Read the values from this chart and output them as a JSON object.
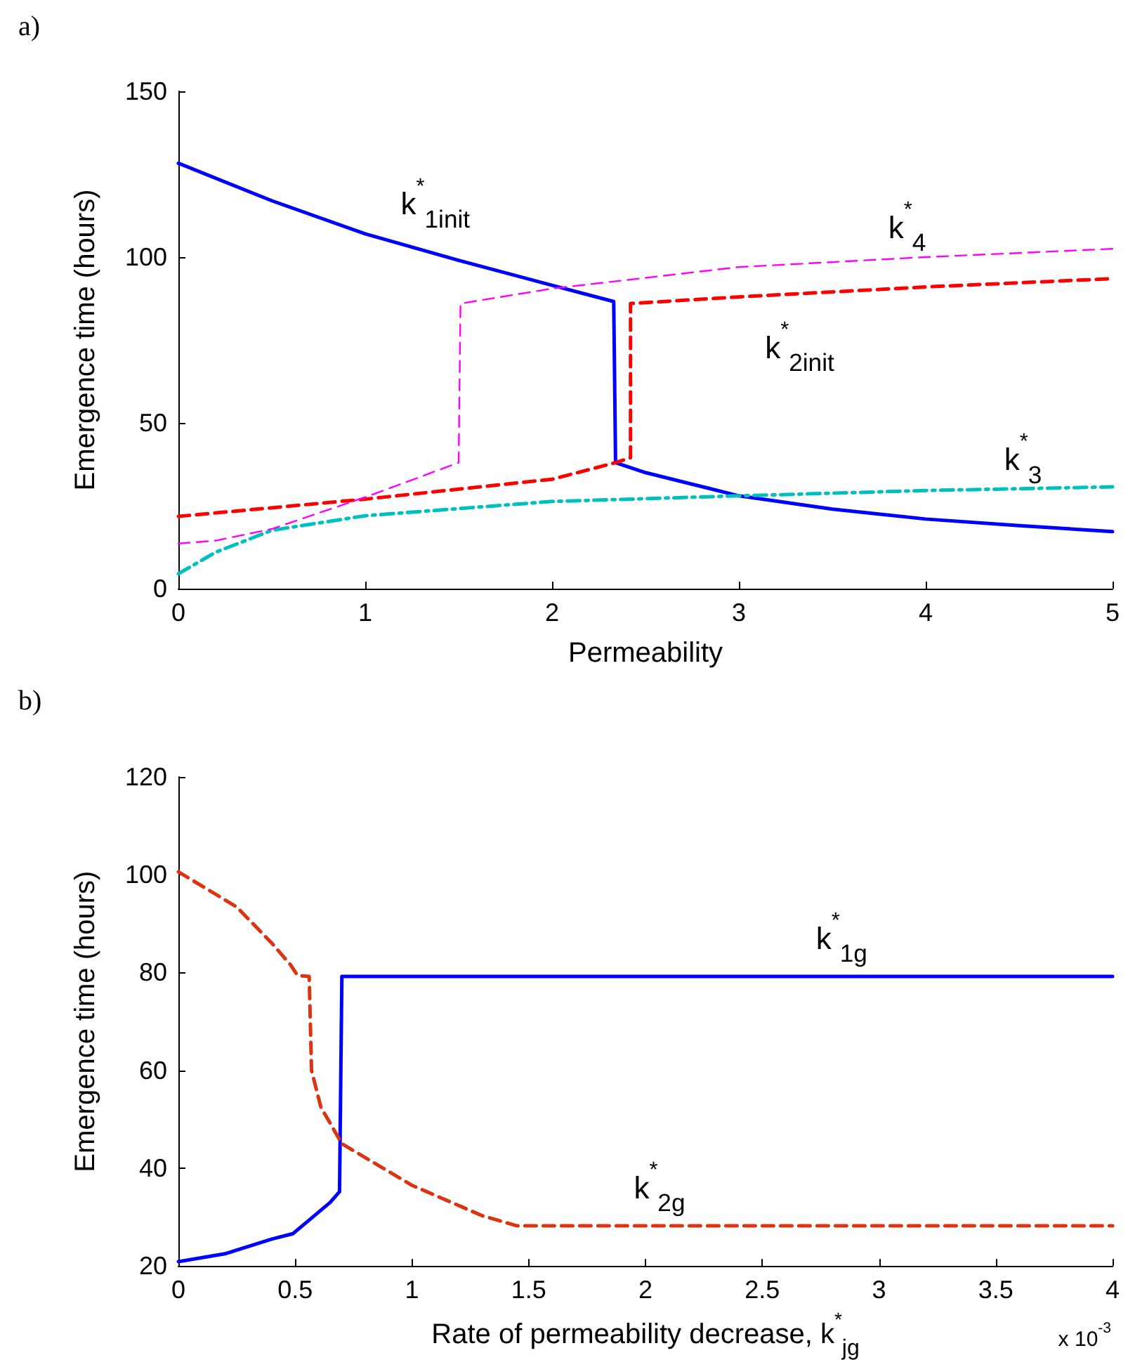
{
  "chart_data": [
    {
      "type": "line",
      "title": "a)",
      "xlabel": "Permeability",
      "ylabel": "Emergence time (hours)",
      "xlim": [
        0,
        5
      ],
      "xticks": [
        0,
        1,
        2,
        3,
        4,
        5
      ],
      "ylim": [
        0,
        150
      ],
      "yticks": [
        0,
        50,
        100,
        150
      ],
      "grid": false,
      "legend": false,
      "marker": "none",
      "series": [
        {
          "name": "k$^{*}$$_{1init}$",
          "color": "#0000ff",
          "line_style": "solid",
          "x": [
            0,
            0.5,
            1,
            1.5,
            2,
            2.33,
            2.34,
            2.5,
            3,
            3.5,
            4,
            4.5,
            5
          ],
          "values": [
            128.3,
            117,
            107,
            99,
            91.5,
            86.6,
            38,
            35,
            28,
            24,
            21,
            19,
            17.2
          ]
        },
        {
          "name": "k$^{*}$$_{2init}$",
          "color": "#ff0000",
          "line_style": "dashed",
          "x": [
            0,
            1,
            2,
            2.34,
            2.42,
            2.42,
            3,
            4,
            5
          ],
          "values": [
            21.8,
            27,
            33,
            38,
            39.5,
            86,
            88,
            91,
            93.5
          ]
        },
        {
          "name": "k$^{*}$$_{3}$",
          "color": "#00bfbf",
          "line_style": "dashdot",
          "x": [
            0,
            0.2,
            0.5,
            1,
            2,
            3,
            4,
            5
          ],
          "values": [
            4.5,
            11,
            17.6,
            22,
            26.3,
            28,
            29.6,
            30.7
          ]
        },
        {
          "name": "k$^{*}$$_{4}$",
          "color": "#ff00ff",
          "line_style": "dashed",
          "x": [
            0,
            0.2,
            0.5,
            1,
            1.5,
            1.51,
            2,
            3,
            4,
            5
          ],
          "values": [
            13.6,
            14.5,
            18,
            27.6,
            38,
            86,
            90.5,
            97,
            100,
            102.5
          ]
        }
      ]
    },
    {
      "type": "line",
      "title": "b)",
      "xlabel": "Rate of permeability decrease, k$^{*}$$_{jg}$",
      "ylabel": "Emergence time (hours)",
      "annotations": [
        "x 10$^{-3}$"
      ],
      "xlim": [
        0,
        4
      ],
      "xticks": [
        0,
        0.5,
        1,
        1.5,
        2,
        2.5,
        3,
        3.5,
        4
      ],
      "ylim": [
        20,
        120
      ],
      "yticks": [
        20,
        40,
        60,
        80,
        100,
        120
      ],
      "grid": false,
      "legend": false,
      "marker": "none",
      "series": [
        {
          "name": "k$^{*}$$_{1g}$",
          "color": "#0000ff",
          "line_style": "solid",
          "x": [
            0,
            0.2,
            0.4,
            0.49,
            0.55,
            0.65,
            0.69,
            0.7,
            4
          ],
          "values": [
            20.9,
            22.5,
            25.5,
            26.6,
            29,
            33,
            35.2,
            79.2,
            79.2
          ]
        },
        {
          "name": "k$^{*}$$_{2g}$",
          "color": "#dd3311",
          "line_style": "dashed",
          "x": [
            0,
            0.25,
            0.4,
            0.48,
            0.51,
            0.56,
            0.57,
            0.61,
            0.7,
            1,
            1.3,
            1.45,
            4
          ],
          "values": [
            100.6,
            93.4,
            86,
            81.6,
            79.4,
            79.2,
            60,
            52.5,
            45,
            36.5,
            30.3,
            28.2,
            28.2
          ]
        }
      ]
    }
  ]
}
